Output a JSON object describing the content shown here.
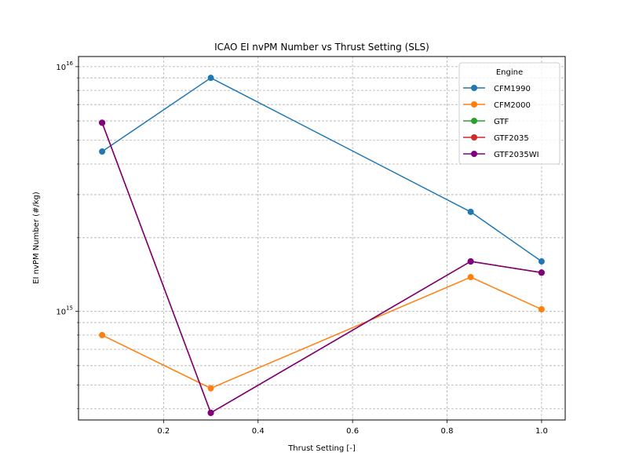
{
  "chart_data": {
    "type": "line",
    "title": "ICAO EI nvPM Number vs Thrust Setting (SLS)",
    "xlabel": "Thrust Setting [-]",
    "ylabel": "EI nvPM Number (#/kg)",
    "xlim": [
      0.02,
      1.05
    ],
    "ylim": [
      360000000000000.0,
      1.1e+16
    ],
    "yscale": "log",
    "grid": true,
    "x_ticks": [
      0.2,
      0.4,
      0.6,
      0.8,
      1.0
    ],
    "x_tick_labels": [
      "0.2",
      "0.4",
      "0.6",
      "0.8",
      "1.0"
    ],
    "y_major_ticks": [
      {
        "value": 1000000000000000.0,
        "base": "10",
        "exp": "15"
      },
      {
        "value": 1e+16,
        "base": "10",
        "exp": "16"
      }
    ],
    "y_minor_ticks": [
      400000000000000.0,
      500000000000000.0,
      600000000000000.0,
      700000000000000.0,
      800000000000000.0,
      900000000000000.0,
      2000000000000000.0,
      3000000000000000.0,
      4000000000000000.0,
      5000000000000000.0,
      6000000000000000.0,
      7000000000000000.0,
      8000000000000000.0,
      9000000000000000.0
    ],
    "legend": {
      "title": "Engine",
      "position": "top-right"
    },
    "x": [
      0.07,
      0.3,
      0.85,
      1.0
    ],
    "series": [
      {
        "name": "CFM1990",
        "color": "#1f77b4",
        "values": [
          4500000000000000.0,
          9000000000000000.0,
          2550000000000000.0,
          1600000000000000.0
        ]
      },
      {
        "name": "CFM2000",
        "color": "#ff7f0e",
        "values": [
          800000000000000.0,
          485000000000000.0,
          1380000000000000.0,
          1020000000000000.0
        ]
      },
      {
        "name": "GTF",
        "color": "#2ca02c",
        "values": [
          5900000000000000.0,
          385000000000000.0,
          1600000000000000.0,
          1440000000000000.0
        ]
      },
      {
        "name": "GTF2035",
        "color": "#d62728",
        "values": [
          5900000000000000.0,
          385000000000000.0,
          1600000000000000.0,
          1440000000000000.0
        ]
      },
      {
        "name": "GTF2035WI",
        "color": "#800080",
        "values": [
          5900000000000000.0,
          385000000000000.0,
          1600000000000000.0,
          1440000000000000.0
        ]
      }
    ]
  }
}
